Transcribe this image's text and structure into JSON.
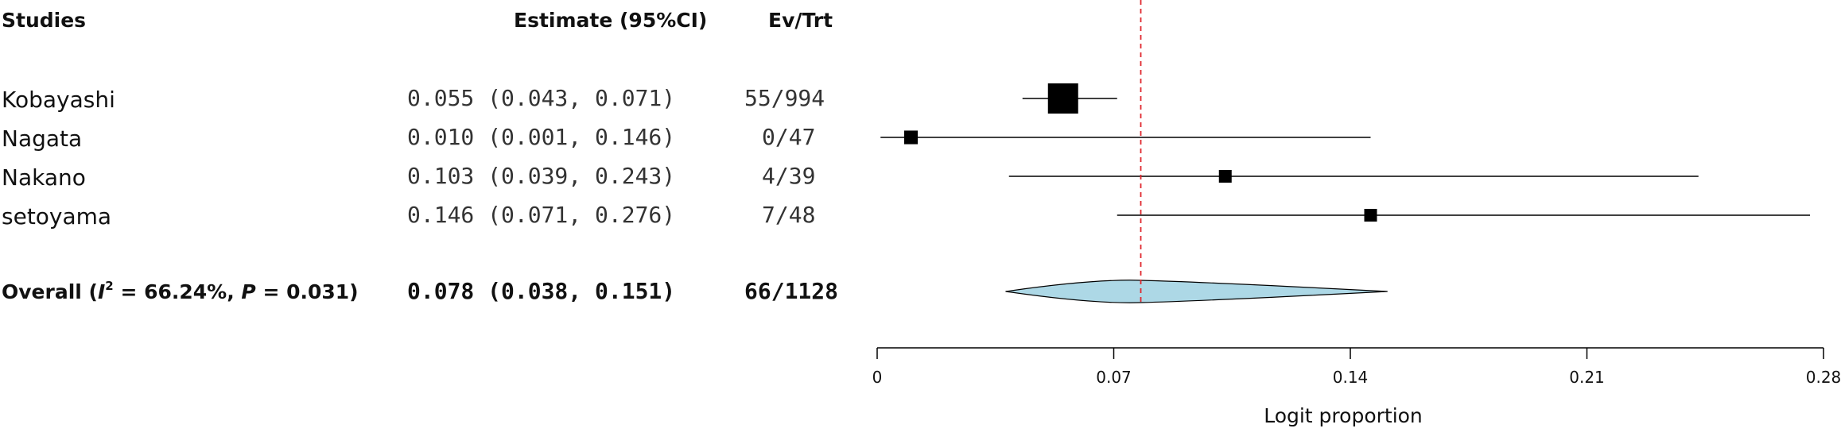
{
  "chart_data": {
    "type": "forest",
    "headers": {
      "studies": "Studies",
      "estimate": "Estimate (95%CI)",
      "events": "Ev/Trt"
    },
    "studies": [
      {
        "name": "Kobayashi",
        "estimate": 0.055,
        "ci": [
          0.043,
          0.071
        ],
        "estimate_text": "0.055 (0.043, 0.071)",
        "ev_trt": "55/994",
        "weight": 1.0
      },
      {
        "name": "Nagata",
        "estimate": 0.01,
        "ci": [
          0.001,
          0.146
        ],
        "estimate_text": "0.010 (0.001, 0.146)",
        "ev_trt": "0/47",
        "weight": 0.45
      },
      {
        "name": "Nakano",
        "estimate": 0.103,
        "ci": [
          0.039,
          0.243
        ],
        "estimate_text": "0.103 (0.039, 0.243)",
        "ev_trt": "4/39",
        "weight": 0.42
      },
      {
        "name": "setoyama",
        "estimate": 0.146,
        "ci": [
          0.071,
          0.276
        ],
        "estimate_text": "0.146 (0.071, 0.276)",
        "ev_trt": "7/48",
        "weight": 0.42
      }
    ],
    "overall": {
      "label_prefix": "Overall (",
      "label_i": "I",
      "label_sup": "2",
      "label_mid": " = 66.24%, ",
      "label_p": "P",
      "label_end": " = 0.031)",
      "estimate": 0.078,
      "ci": [
        0.038,
        0.151
      ],
      "estimate_text": "0.078 (0.038, 0.151)",
      "ev_trt": "66/1128"
    },
    "reference_line": 0.078,
    "x_axis": {
      "label": "Logit proportion",
      "range": [
        0,
        0.28
      ],
      "ticks": [
        0,
        0.07,
        0.14,
        0.21,
        0.28
      ],
      "tick_labels": [
        "0",
        "0.07",
        "0.14",
        "0.21",
        "0.28"
      ]
    },
    "colors": {
      "diamond_fill": "#add8e6",
      "reference_line": "#e0262d",
      "marker": "#000000"
    }
  }
}
